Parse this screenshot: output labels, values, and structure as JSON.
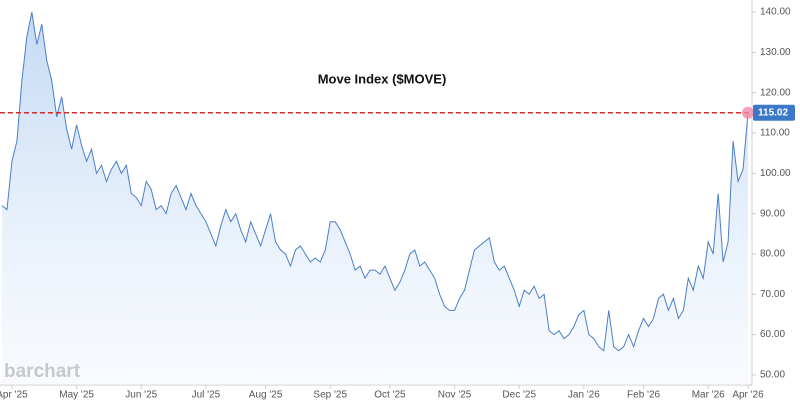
{
  "chart_data": {
    "type": "line",
    "title": "Move Index ($MOVE)",
    "watermark": "barchart",
    "categories": [
      null,
      null,
      "Apr '25",
      null,
      null,
      null,
      null,
      null,
      null,
      null,
      null,
      null,
      null,
      null,
      null,
      "May '25",
      null,
      null,
      null,
      null,
      null,
      null,
      null,
      null,
      null,
      null,
      null,
      null,
      "Jun '25",
      null,
      null,
      null,
      null,
      null,
      null,
      null,
      null,
      null,
      null,
      null,
      null,
      "Jul '25",
      null,
      null,
      null,
      null,
      null,
      null,
      null,
      null,
      null,
      null,
      null,
      "Aug '25",
      null,
      null,
      null,
      null,
      null,
      null,
      null,
      null,
      null,
      null,
      null,
      null,
      "Sep '25",
      null,
      null,
      null,
      null,
      null,
      null,
      null,
      null,
      null,
      null,
      null,
      "Oct '25",
      null,
      null,
      null,
      null,
      null,
      null,
      null,
      null,
      null,
      null,
      null,
      null,
      "Nov '25",
      null,
      null,
      null,
      null,
      null,
      null,
      null,
      null,
      null,
      null,
      null,
      null,
      "Dec '25",
      null,
      null,
      null,
      null,
      null,
      null,
      null,
      null,
      null,
      null,
      null,
      null,
      "Jan '26",
      null,
      null,
      null,
      null,
      null,
      null,
      null,
      null,
      null,
      null,
      null,
      "Feb '26",
      null,
      null,
      null,
      null,
      null,
      null,
      null,
      null,
      null,
      null,
      null,
      null,
      "Mar '26",
      null,
      null,
      null,
      null,
      null,
      null,
      null,
      "Apr '26"
    ],
    "series": [
      {
        "name": "MOVE",
        "color": "#4a7fc9",
        "values": [
          92,
          91,
          103,
          108,
          123,
          134,
          140,
          132,
          137,
          128,
          123,
          114,
          119,
          111,
          106,
          112,
          107,
          103,
          106,
          100,
          102,
          98,
          101,
          103,
          100,
          102,
          95,
          94,
          92,
          98,
          96,
          91,
          92,
          90,
          95,
          97,
          94,
          91,
          95,
          92,
          90,
          88,
          85,
          82,
          87,
          91,
          88,
          90,
          86,
          83,
          88,
          85,
          82,
          86,
          90,
          83,
          81,
          80,
          77,
          81,
          82,
          80,
          78,
          79,
          78,
          81,
          88,
          88,
          86,
          83,
          80,
          76,
          77,
          74,
          76,
          76,
          75,
          77,
          74,
          71,
          73,
          76,
          80,
          81,
          77,
          78,
          76,
          74,
          70,
          67,
          66,
          66,
          69,
          71,
          76,
          81,
          82,
          83,
          84,
          78,
          76,
          77,
          74,
          71,
          67,
          71,
          70,
          72,
          69,
          70,
          61,
          60,
          61,
          59,
          60,
          62,
          65,
          66,
          60,
          59,
          57,
          56,
          66,
          57,
          56,
          57,
          60,
          57,
          61,
          64,
          62,
          64,
          69,
          70,
          66,
          69,
          64,
          66,
          74,
          71,
          77,
          74,
          83,
          80,
          95,
          78,
          83,
          108,
          98,
          101,
          115.02
        ]
      }
    ],
    "ylim": [
      47.5,
      143
    ],
    "yticks": [
      {
        "value": 50,
        "label": "50.00"
      },
      {
        "value": 60,
        "label": "60.00"
      },
      {
        "value": 70,
        "label": "70.00"
      },
      {
        "value": 80,
        "label": "80.00"
      },
      {
        "value": 90,
        "label": "90.00"
      },
      {
        "value": 100,
        "label": "100.00"
      },
      {
        "value": 110,
        "label": "110.00"
      },
      {
        "value": 120,
        "label": "120.00"
      },
      {
        "value": 130,
        "label": "130.00"
      },
      {
        "value": 140,
        "label": "140.00"
      }
    ],
    "grid": false,
    "reference_color": "#d42a2a",
    "label_color": "#3b78c8"
  }
}
